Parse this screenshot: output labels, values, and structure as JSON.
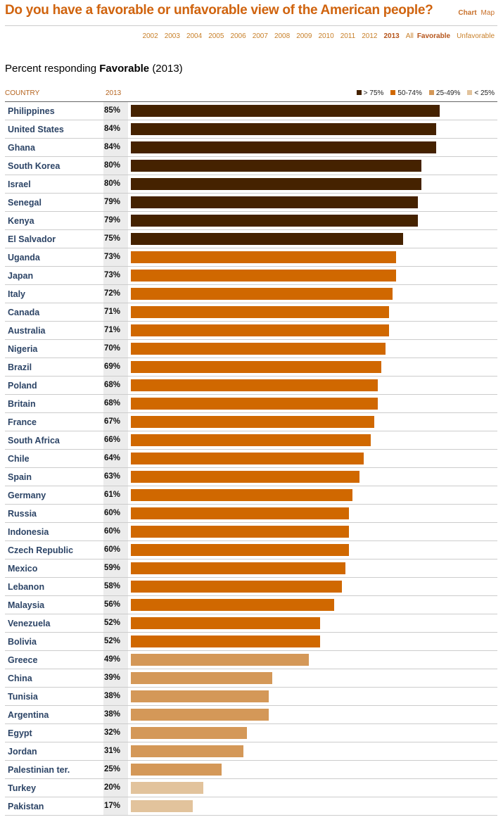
{
  "header": {
    "title": "Do you have a favorable or unfavorable view of the American people?",
    "views": [
      "Chart",
      "Map"
    ]
  },
  "years": [
    "2002",
    "2003",
    "2004",
    "2005",
    "2006",
    "2007",
    "2008",
    "2009",
    "2010",
    "2011",
    "2012",
    "2013",
    "All"
  ],
  "measures": [
    "Favorable",
    "Unfavorable"
  ],
  "subtitle": {
    "prefix": "Percent responding ",
    "measure": "Favorable",
    "year": "(2013)"
  },
  "colors": {
    "dark": "#452200",
    "orange": "#d06800",
    "mid": "#d49858",
    "light": "#e2c39c"
  },
  "chart_data": {
    "type": "bar",
    "title": "Percent responding Favorable (2013)",
    "column_headers": {
      "country": "COUNTRY",
      "value": "2013"
    },
    "legend": [
      {
        "label": "> 75%",
        "color": "#452200"
      },
      {
        "label": "50-74%",
        "color": "#d06800"
      },
      {
        "label": "25-49%",
        "color": "#d49858"
      },
      {
        "label": "< 25%",
        "color": "#e2c39c"
      }
    ],
    "legend_position": "top-right",
    "xlim": [
      0,
      100
    ],
    "categories": [
      "Philippines",
      "United States",
      "Ghana",
      "South Korea",
      "Israel",
      "Senegal",
      "Kenya",
      "El Salvador",
      "Uganda",
      "Japan",
      "Italy",
      "Canada",
      "Australia",
      "Nigeria",
      "Brazil",
      "Poland",
      "Britain",
      "France",
      "South Africa",
      "Chile",
      "Spain",
      "Germany",
      "Russia",
      "Indonesia",
      "Czech Republic",
      "Mexico",
      "Lebanon",
      "Malaysia",
      "Venezuela",
      "Bolivia",
      "Greece",
      "China",
      "Tunisia",
      "Argentina",
      "Egypt",
      "Jordan",
      "Palestinian ter.",
      "Turkey",
      "Pakistan"
    ],
    "values": [
      85,
      84,
      84,
      80,
      80,
      79,
      79,
      75,
      73,
      73,
      72,
      71,
      71,
      70,
      69,
      68,
      68,
      67,
      66,
      64,
      63,
      61,
      60,
      60,
      60,
      59,
      58,
      56,
      52,
      52,
      49,
      39,
      38,
      38,
      32,
      31,
      25,
      20,
      17
    ]
  }
}
